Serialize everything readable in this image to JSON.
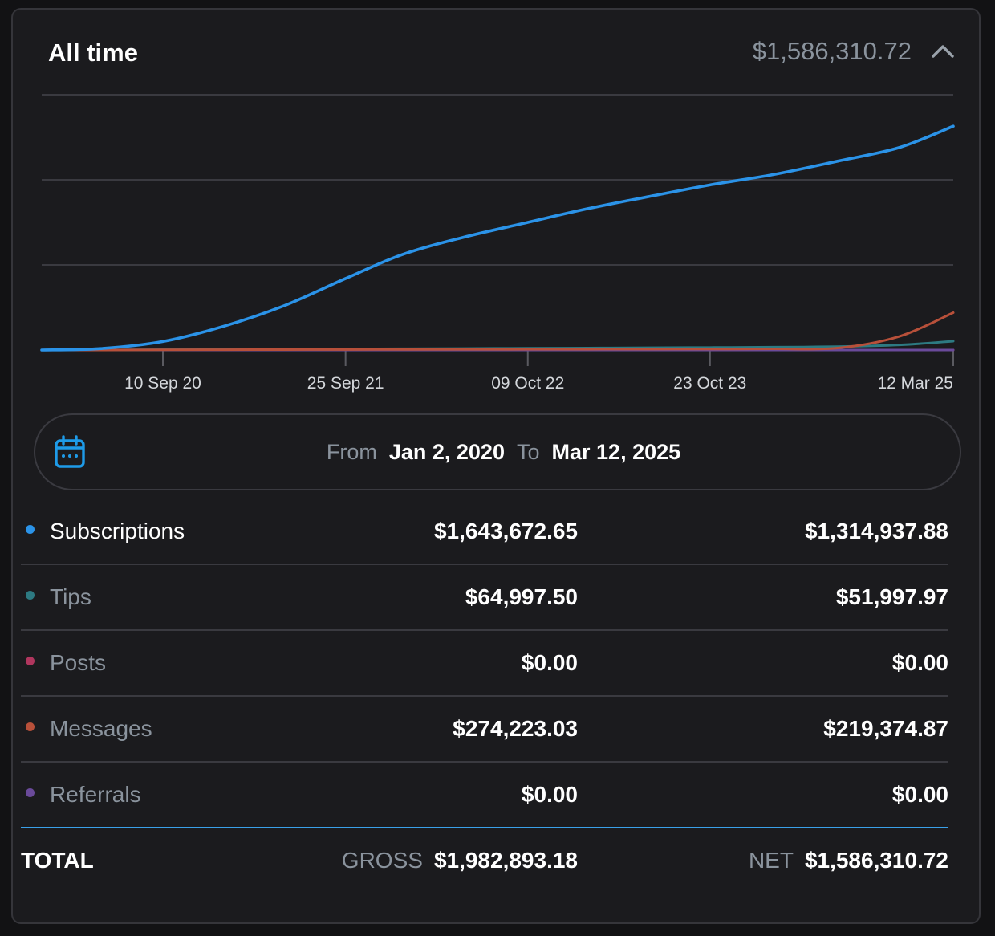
{
  "header": {
    "title": "All time",
    "amount": "$1,586,310.72"
  },
  "chart_data": {
    "type": "line",
    "x_ticks": [
      "10 Sep 20",
      "25 Sep 21",
      "09 Oct 22",
      "23 Oct 23",
      "12 Mar 25"
    ],
    "x": [
      "2020-01-02",
      "2020-05-01",
      "2020-09-10",
      "2021-01-15",
      "2021-05-20",
      "2021-09-25",
      "2022-01-20",
      "2022-05-25",
      "2022-10-09",
      "2023-02-10",
      "2023-06-15",
      "2023-10-23",
      "2024-03-01",
      "2024-07-15",
      "2024-11-20",
      "2025-03-12"
    ],
    "series": [
      {
        "name": "Subscriptions",
        "color": "#2b93e8",
        "values": [
          0,
          8000,
          50000,
          140000,
          260000,
          420000,
          560000,
          660000,
          750000,
          830000,
          900000,
          970000,
          1030000,
          1110000,
          1190000,
          1314937.88
        ]
      },
      {
        "name": "Tips",
        "color": "#2d7a82",
        "values": [
          0,
          500,
          1500,
          3000,
          4500,
          6000,
          7500,
          9000,
          10500,
          12000,
          13500,
          15000,
          17000,
          20000,
          30000,
          51997.97
        ]
      },
      {
        "name": "Posts",
        "color": "#b0365e",
        "values": [
          0,
          0,
          0,
          0,
          0,
          0,
          0,
          0,
          0,
          0,
          0,
          0,
          0,
          0,
          0,
          0
        ]
      },
      {
        "name": "Messages",
        "color": "#b8503a",
        "values": [
          0,
          0,
          1000,
          2000,
          2500,
          3000,
          3500,
          4000,
          4500,
          5000,
          5500,
          6000,
          7000,
          12000,
          80000,
          219374.87
        ]
      },
      {
        "name": "Referrals",
        "color": "#6a4a9a",
        "values": [
          0,
          0,
          0,
          0,
          0,
          0,
          0,
          0,
          0,
          0,
          0,
          0,
          0,
          0,
          0,
          0
        ]
      }
    ],
    "ylim": [
      0,
      1500000
    ],
    "grid": true
  },
  "date_range": {
    "from_label": "From",
    "from_value": "Jan 2, 2020",
    "to_label": "To",
    "to_value": "Mar 12, 2025"
  },
  "rows": [
    {
      "name": "Subscriptions",
      "gross": "$1,643,672.65",
      "net": "$1,314,937.88",
      "color": "#2b93e8",
      "active": true
    },
    {
      "name": "Tips",
      "gross": "$64,997.50",
      "net": "$51,997.97",
      "color": "#2d7a82",
      "active": false
    },
    {
      "name": "Posts",
      "gross": "$0.00",
      "net": "$0.00",
      "color": "#b0365e",
      "active": false
    },
    {
      "name": "Messages",
      "gross": "$274,223.03",
      "net": "$219,374.87",
      "color": "#b8503a",
      "active": false
    },
    {
      "name": "Referrals",
      "gross": "$0.00",
      "net": "$0.00",
      "color": "#6a4a9a",
      "active": false
    }
  ],
  "total": {
    "label": "TOTAL",
    "gross_label": "GROSS",
    "gross": "$1,982,893.18",
    "net_label": "NET",
    "net": "$1,586,310.72"
  }
}
